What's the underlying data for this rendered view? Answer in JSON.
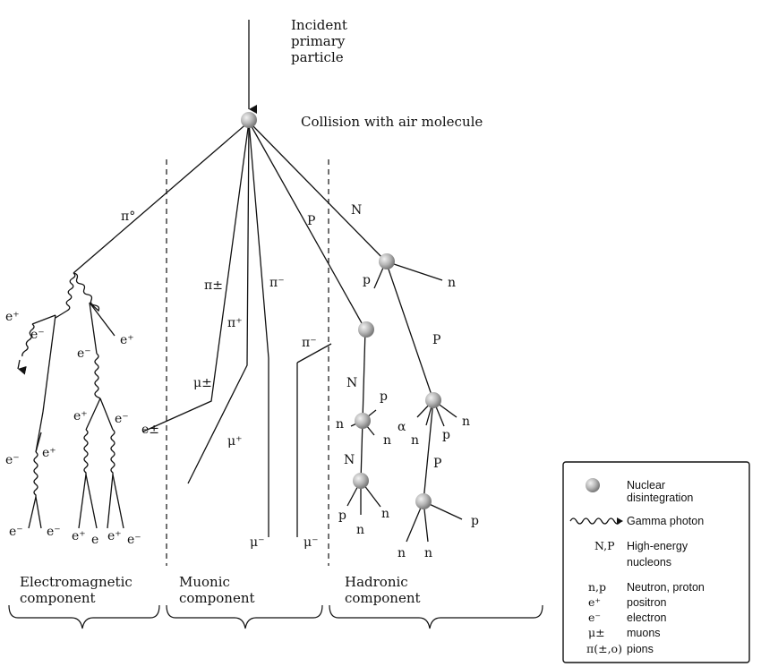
{
  "header": {
    "incident_line1": "Incident",
    "incident_line2": "primary",
    "incident_line3": "particle",
    "collision": "Collision with air molecule"
  },
  "particles": {
    "pi0": "π°",
    "pipm": "π±",
    "piminus": "π⁻",
    "piplus": "π⁺",
    "P": "P",
    "N": "N",
    "p": "p",
    "n": "n",
    "alpha": "α",
    "mupm": "μ±",
    "muplus": "μ⁺",
    "muminus": "μ⁻",
    "eplus": "e⁺",
    "eminus": "e⁻",
    "epm": "e±",
    "e": "e"
  },
  "components": {
    "em_line1": "Electromagnetic",
    "em_line2": "component",
    "mu_line1": "Muonic",
    "mu_line2": "component",
    "had_line1": "Hadronic",
    "had_line2": "component"
  },
  "legend": {
    "nuclear_1": "Nuclear",
    "nuclear_2": "disintegration",
    "gamma": "Gamma photon",
    "np_sym": "N,P",
    "np_1": "High-energy",
    "np_2": "nucleons",
    "nprot_sym": "n,p",
    "nprot": "Neutron, proton",
    "eplus_sym": "e⁺",
    "eplus": "positron",
    "eminus_sym": "e⁻",
    "eminus": "electron",
    "mu_sym": "μ±",
    "mu": "muons",
    "pi_sym": "π(±,o)",
    "pi": "pions"
  }
}
